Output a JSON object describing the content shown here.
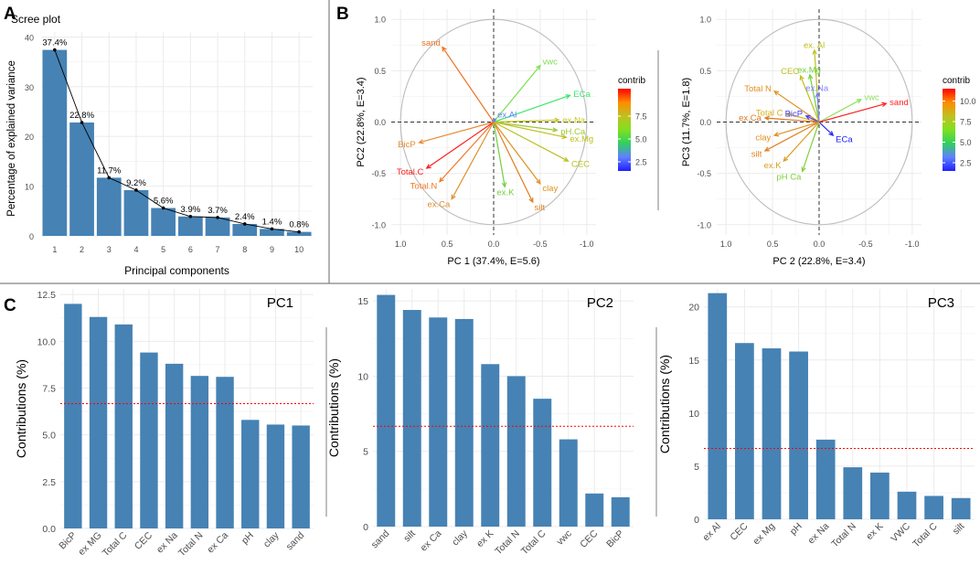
{
  "panel_letters": {
    "a": "A",
    "b": "B",
    "c": "C"
  },
  "colors": {
    "bar": "#4682b4",
    "threshold": "#ff0000",
    "grid": "#ebebeb",
    "axis": "#4d4d4d",
    "circle": "#bdbdbd"
  },
  "contrib_scale": {
    "title": "contrib",
    "stops": [
      "#ff0000",
      "#ff8c00",
      "#c0c020",
      "#80e020",
      "#30d060",
      "#6080ff",
      "#2020ff"
    ]
  },
  "chart_data": [
    {
      "id": "scree",
      "type": "bar",
      "title": "Scree plot",
      "xlabel": "Principal components",
      "ylabel": "Percentage of explained variance",
      "categories": [
        "1",
        "2",
        "3",
        "4",
        "5",
        "6",
        "7",
        "8",
        "9",
        "10"
      ],
      "values": [
        37.4,
        22.8,
        11.7,
        9.2,
        5.6,
        3.9,
        3.7,
        2.4,
        1.4,
        0.8
      ],
      "labels": [
        "37.4%",
        "22.8%",
        "11.7%",
        "9.2%",
        "5.6%",
        "3.9%",
        "3.7%",
        "2.4%",
        "1.4%",
        "0.8%"
      ],
      "ylim": [
        0,
        41
      ],
      "yticks": [
        0,
        10,
        20,
        30,
        40
      ],
      "line": true
    },
    {
      "id": "biplot12",
      "type": "scatter",
      "subtype": "pca-variable-correlation-circle",
      "xlabel": "PC 1 (37.4%, E=5.6)",
      "ylabel": "PC2 (22.8%, E=3.4)",
      "xlim": [
        -1.1,
        1.1
      ],
      "ylim": [
        -1.1,
        1.1
      ],
      "xticks": [
        "1.0",
        "0.5",
        "0.0",
        "-0.5",
        "-1.0"
      ],
      "yticks": [
        "1.0",
        "0.5",
        "0.0",
        "-0.5",
        "-1.0"
      ],
      "x_reversed": true,
      "legend": {
        "title": "contrib",
        "ticks": [
          "7.5",
          "5.0",
          "2.5"
        ],
        "range": [
          1.5,
          10.5
        ],
        "tickvals": [
          7.5,
          5.0,
          2.5
        ]
      },
      "vectors": [
        {
          "name": "sand",
          "x": 0.55,
          "y": 0.73,
          "color": "#f07020"
        },
        {
          "name": "vwc",
          "x": -0.5,
          "y": 0.55,
          "color": "#7ce04c"
        },
        {
          "name": "ECa",
          "x": -0.82,
          "y": 0.26,
          "color": "#3ee66a"
        },
        {
          "name": "ex.Al",
          "x": -0.02,
          "y": 0.03,
          "color": "#6080ff"
        },
        {
          "name": "ex.Na",
          "x": -0.7,
          "y": 0.02,
          "color": "#c8c820"
        },
        {
          "name": "pH.Ca",
          "x": -0.68,
          "y": -0.08,
          "color": "#a0c830"
        },
        {
          "name": "ex.Mg",
          "x": -0.78,
          "y": -0.15,
          "color": "#c0c020"
        },
        {
          "name": "CEC",
          "x": -0.8,
          "y": -0.38,
          "color": "#b8c020"
        },
        {
          "name": "clay",
          "x": -0.5,
          "y": -0.6,
          "color": "#e09020"
        },
        {
          "name": "silt",
          "x": -0.42,
          "y": -0.78,
          "color": "#e08020"
        },
        {
          "name": "ex.K",
          "x": -0.12,
          "y": -0.63,
          "color": "#70d040"
        },
        {
          "name": "ex.Ca",
          "x": 0.45,
          "y": -0.75,
          "color": "#e09030"
        },
        {
          "name": "Total.N",
          "x": 0.58,
          "y": -0.58,
          "color": "#f07828"
        },
        {
          "name": "Total.C",
          "x": 0.72,
          "y": -0.45,
          "color": "#ff2020"
        },
        {
          "name": "BicP",
          "x": 0.8,
          "y": -0.2,
          "color": "#e88a30"
        }
      ]
    },
    {
      "id": "biplot23",
      "type": "scatter",
      "subtype": "pca-variable-correlation-circle",
      "xlabel": "PC 2 (22.8%, E=3.4)",
      "ylabel": "PC3 (11.7%, E=1.8)",
      "xlim": [
        -1.1,
        1.1
      ],
      "ylim": [
        -1.1,
        1.1
      ],
      "xticks": [
        "1.0",
        "0.5",
        "0.0",
        "-0.5",
        "-1.0"
      ],
      "yticks": [
        "1.0",
        "0.5",
        "0.0",
        "-0.5",
        "-1.0"
      ],
      "x_reversed": true,
      "legend": {
        "title": "contrib",
        "ticks": [
          "10.0",
          "7.5",
          "5.0",
          "2.5"
        ],
        "range": [
          1.5,
          11.5
        ],
        "tickvals": [
          10.0,
          7.5,
          5.0,
          2.5
        ]
      },
      "vectors": [
        {
          "name": "ex. Al",
          "x": 0.05,
          "y": 0.7,
          "color": "#c0c020"
        },
        {
          "name": "ex.Mg",
          "x": 0.1,
          "y": 0.46,
          "color": "#70d040"
        },
        {
          "name": "CEC",
          "x": 0.2,
          "y": 0.45,
          "color": "#c0c020"
        },
        {
          "name": "ex.Na",
          "x": 0.02,
          "y": 0.28,
          "color": "#8080ff"
        },
        {
          "name": "vwc",
          "x": -0.45,
          "y": 0.22,
          "color": "#90e060"
        },
        {
          "name": "sand",
          "x": -0.72,
          "y": 0.18,
          "color": "#ff2020"
        },
        {
          "name": "Total N",
          "x": 0.48,
          "y": 0.3,
          "color": "#e09020"
        },
        {
          "name": "Total C",
          "x": 0.35,
          "y": 0.08,
          "color": "#d8b020"
        },
        {
          "name": "BicP",
          "x": 0.14,
          "y": 0.06,
          "color": "#4040ff"
        },
        {
          "name": "ex.Ca",
          "x": 0.58,
          "y": 0.04,
          "color": "#e07820"
        },
        {
          "name": "ECa",
          "x": -0.15,
          "y": -0.13,
          "color": "#2020ff"
        },
        {
          "name": "clay",
          "x": 0.48,
          "y": -0.13,
          "color": "#e09020"
        },
        {
          "name": "silt",
          "x": 0.58,
          "y": -0.28,
          "color": "#e08020"
        },
        {
          "name": "ex.K",
          "x": 0.38,
          "y": -0.38,
          "color": "#d8a020"
        },
        {
          "name": "pH Ca",
          "x": 0.18,
          "y": -0.48,
          "color": "#80d040"
        }
      ]
    },
    {
      "id": "pc1",
      "type": "bar",
      "title": "PC1",
      "ylabel": "Contributions (%)",
      "categories": [
        "BicP",
        "ex MG",
        "Total C",
        "CEC",
        "ex Na",
        "Total N",
        "ex Ca",
        "pH",
        "clay",
        "sand"
      ],
      "values": [
        12.0,
        11.3,
        10.9,
        9.4,
        8.8,
        8.15,
        8.1,
        5.8,
        5.55,
        5.5
      ],
      "threshold": 6.67,
      "ylim": [
        0,
        12.8
      ],
      "yticks": [
        "0.0",
        "2.5",
        "5.0",
        "7.5",
        "10.0",
        "12.5"
      ],
      "ytickvals": [
        0,
        2.5,
        5.0,
        7.5,
        10.0,
        12.5
      ]
    },
    {
      "id": "pc2",
      "type": "bar",
      "title": "PC2",
      "ylabel": "Contributions (%)",
      "categories": [
        "sand",
        "silt",
        "ex Ca",
        "clay",
        "ex K",
        "Total N",
        "Total C",
        "vwc",
        "CEC",
        "BicP"
      ],
      "values": [
        15.4,
        14.4,
        13.9,
        13.8,
        10.8,
        10.0,
        8.5,
        5.8,
        2.2,
        1.95
      ],
      "threshold": 6.67,
      "ylim": [
        0,
        15.8
      ],
      "yticks": [
        "0",
        "5",
        "10",
        "15"
      ],
      "ytickvals": [
        0,
        5,
        10,
        15
      ]
    },
    {
      "id": "pc3",
      "type": "bar",
      "title": "PC3",
      "ylabel": "Contributions (%)",
      "categories": [
        "ex Al",
        "CEC",
        "ex Mg",
        "pH",
        "ex Na",
        "Total N",
        "ex K",
        "VWC",
        "Total C",
        "silt"
      ],
      "values": [
        21.3,
        16.6,
        16.1,
        15.8,
        7.5,
        4.9,
        4.4,
        2.6,
        2.2,
        2.0
      ],
      "threshold": 6.67,
      "ylim": [
        0,
        21.7
      ],
      "yticks": [
        "0",
        "5",
        "10",
        "15",
        "20"
      ],
      "ytickvals": [
        0,
        5,
        10,
        15,
        20
      ]
    }
  ]
}
